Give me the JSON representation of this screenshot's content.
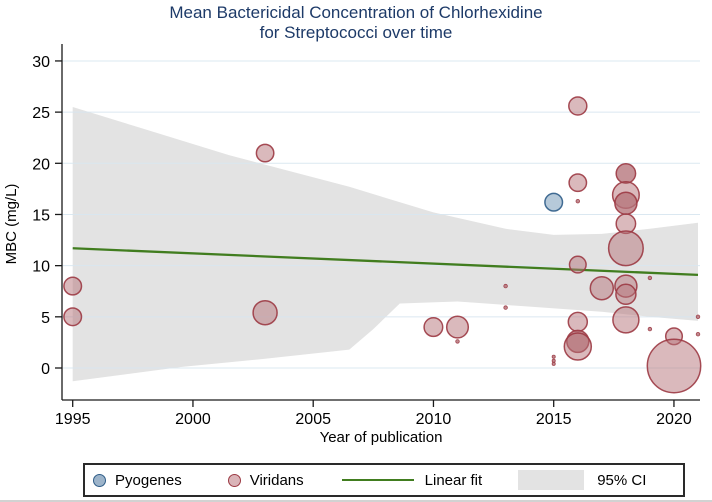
{
  "title": {
    "line1": "Mean Bactericidal Concentration of Chlorhexidine",
    "line2": "for Streptococci over time"
  },
  "colors": {
    "title_text": "#1d3a68",
    "viridans_fill": "#b5737a",
    "viridans_stroke": "#9c3a44",
    "pyogenes_fill": "#6e93b4",
    "pyogenes_stroke": "#2f5d88",
    "fit_line": "#417d1f",
    "ci_band": "#e3e3e3",
    "gridline": "#d7e5ef",
    "axis": "#1a1a1a"
  },
  "chart_data": {
    "type": "scatter",
    "title": "Mean Bactericidal Concentration of Chlorhexidine for Streptococci over time",
    "xlabel": "Year of publication",
    "ylabel": "MBC (mg/L)",
    "xlim": [
      1994.5,
      2021.2
    ],
    "ylim": [
      -3,
      31
    ],
    "xticks": [
      1995,
      2000,
      2005,
      2010,
      2015,
      2020
    ],
    "yticks": [
      0,
      5,
      10,
      15,
      20,
      25,
      30
    ],
    "grid": "horizontal-light-blue",
    "legend_position": "bottom",
    "point_columns": [
      "year",
      "mbc_mg_per_L",
      "marker_radius_px",
      "style"
    ],
    "series": [
      {
        "name": "Pyogenes",
        "type": "bubble",
        "points": [
          [
            2015,
            16.2,
            8.8,
            "normal"
          ]
        ]
      },
      {
        "name": "Viridans",
        "type": "bubble",
        "points": [
          [
            1995,
            8.0,
            8.8,
            "normal"
          ],
          [
            1995,
            5.0,
            8.8,
            "normal"
          ],
          [
            2003,
            21.0,
            8.7,
            "normal"
          ],
          [
            2003,
            5.4,
            12.0,
            "normal"
          ],
          [
            2010,
            4.0,
            9.3,
            "normal"
          ],
          [
            2011,
            4.0,
            10.8,
            "normal"
          ],
          [
            2011,
            2.6,
            1.8,
            "tiny"
          ],
          [
            2013,
            8.0,
            1.8,
            "tiny"
          ],
          [
            2013,
            5.9,
            1.8,
            "tiny"
          ],
          [
            2015,
            1.1,
            1.6,
            "tiny"
          ],
          [
            2015,
            0.7,
            1.6,
            "tiny"
          ],
          [
            2015,
            0.4,
            1.6,
            "tiny"
          ],
          [
            2016,
            25.6,
            9.0,
            "normal"
          ],
          [
            2016,
            18.1,
            8.7,
            "normal"
          ],
          [
            2016,
            16.3,
            1.8,
            "tiny"
          ],
          [
            2016,
            10.1,
            8.3,
            "normal"
          ],
          [
            2016,
            4.5,
            9.5,
            "normal"
          ],
          [
            2016,
            2.6,
            11.0,
            "dark"
          ],
          [
            2016,
            2.1,
            13.5,
            "normal"
          ],
          [
            2017,
            7.8,
            11.5,
            "normal"
          ],
          [
            2018,
            19.0,
            9.7,
            "dark"
          ],
          [
            2018,
            16.9,
            13.3,
            "normal"
          ],
          [
            2018,
            16.1,
            11.0,
            "dark"
          ],
          [
            2018,
            14.1,
            9.7,
            "normal"
          ],
          [
            2018,
            11.7,
            17.3,
            "normal"
          ],
          [
            2018,
            8.0,
            11.0,
            "normal"
          ],
          [
            2018,
            7.2,
            10.0,
            "normal"
          ],
          [
            2018,
            4.7,
            13.0,
            "normal"
          ],
          [
            2019,
            8.8,
            1.8,
            "tiny"
          ],
          [
            2019,
            3.8,
            1.8,
            "tiny"
          ],
          [
            2020,
            3.1,
            8.3,
            "normal"
          ],
          [
            2020,
            0.2,
            26.7,
            "normal"
          ],
          [
            2021,
            5.0,
            1.8,
            "tiny"
          ],
          [
            2021,
            3.3,
            1.8,
            "tiny"
          ]
        ]
      },
      {
        "name": "Linear fit",
        "type": "line",
        "points": [
          [
            1995,
            11.7
          ],
          [
            2021,
            9.1
          ]
        ]
      },
      {
        "name": "95% CI",
        "type": "band",
        "top": [
          [
            1995,
            25.5
          ],
          [
            2001.5,
            20.8
          ],
          [
            2006.5,
            17.7
          ],
          [
            2010,
            15.2
          ],
          [
            2013,
            13.6
          ],
          [
            2015,
            13.0
          ],
          [
            2017,
            13.1
          ],
          [
            2019,
            13.6
          ],
          [
            2021,
            14.2
          ]
        ],
        "bottom": [
          [
            1995,
            -1.3
          ],
          [
            1999.5,
            0.1
          ],
          [
            2003,
            0.9
          ],
          [
            2006.5,
            1.8
          ],
          [
            2007.5,
            3.8
          ],
          [
            2008.6,
            6.3
          ],
          [
            2011,
            6.5
          ],
          [
            2014,
            6.0
          ],
          [
            2017,
            5.5
          ],
          [
            2019,
            5.0
          ],
          [
            2021,
            4.6
          ]
        ]
      }
    ],
    "legend": {
      "entries": [
        "Pyogenes",
        "Viridans",
        "Linear fit",
        "95% CI"
      ]
    }
  }
}
